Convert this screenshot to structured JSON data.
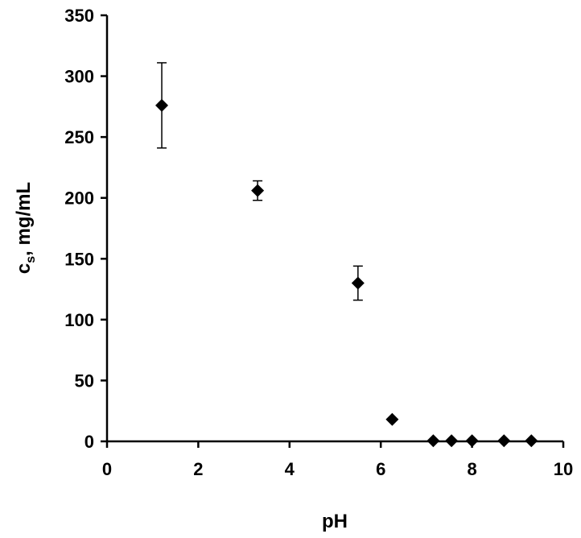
{
  "chart_data": {
    "type": "scatter",
    "xlabel": "pH",
    "ylabel_main": "c",
    "ylabel_sub": "s",
    "ylabel_rest": ", mg/mL",
    "xlim": [
      0,
      10
    ],
    "ylim": [
      0,
      350
    ],
    "xticks": [
      "0",
      "2",
      "4",
      "6",
      "8",
      "10"
    ],
    "yticks": [
      "0",
      "50",
      "100",
      "150",
      "200",
      "250",
      "300",
      "350"
    ],
    "marker": "diamond",
    "color": "#000000",
    "grid": false,
    "legend": "none",
    "points": [
      {
        "x": 1.2,
        "y": 276,
        "err": 35
      },
      {
        "x": 3.3,
        "y": 206,
        "err": 8
      },
      {
        "x": 5.5,
        "y": 130,
        "err": 14
      },
      {
        "x": 6.25,
        "y": 18,
        "err": 0
      },
      {
        "x": 7.15,
        "y": 0.5,
        "err": 0
      },
      {
        "x": 7.55,
        "y": 0.5,
        "err": 0
      },
      {
        "x": 8.0,
        "y": 0.5,
        "err": 0
      },
      {
        "x": 8.7,
        "y": 0.5,
        "err": 0
      },
      {
        "x": 9.3,
        "y": 0.5,
        "err": 0
      }
    ]
  }
}
